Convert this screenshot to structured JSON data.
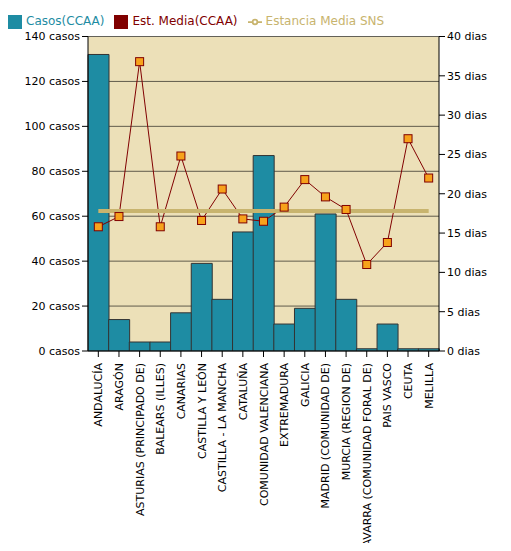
{
  "chart_data": {
    "type": "bar",
    "categories": [
      "ANDALUCÍA",
      "ARAGÓN",
      "ASTURIAS (PRINCIPADO DE)",
      "BALEARS (ILLES)",
      "CANARIAS",
      "CASTILLA Y LEÓN",
      "CASTILLA - LA MANCHA",
      "CATALUÑA",
      "COMUNIDAD VALENCIANA",
      "EXTREMADURA",
      "GALICIA",
      "MADRID (COMUNIDAD DE)",
      "MURCIA (REGION DE)",
      "NAVARRA (COMUNIDAD FORAL DE)",
      "PAIS VASCO",
      "CEUTA",
      "MELILLA"
    ],
    "series": [
      {
        "name": "Casos(CCAA)",
        "type": "bar",
        "color": "#1e8ca3",
        "values": [
          132,
          14,
          4,
          4,
          17,
          39,
          23,
          53,
          87,
          12,
          19,
          61,
          23,
          1,
          12,
          1,
          1
        ]
      },
      {
        "name": "Est. Media(CCAA)",
        "type": "line",
        "axis": "y2",
        "color": "#800000",
        "marker": "square",
        "values": [
          15.8,
          17.1,
          36.8,
          15.8,
          24.8,
          16.6,
          20.6,
          16.8,
          16.5,
          18.3,
          21.8,
          19.6,
          18.0,
          11.0,
          13.8,
          27.0,
          22.0
        ]
      },
      {
        "name": "Estancia Media SNS",
        "type": "line",
        "axis": "y2",
        "color": "#c8b46e",
        "marker": "none",
        "values": [
          17.8,
          17.8,
          17.8,
          17.8,
          17.8,
          17.8,
          17.8,
          17.8,
          17.8,
          17.8,
          17.8,
          17.8,
          17.8,
          17.8,
          17.8,
          17.8,
          17.8
        ]
      }
    ],
    "ylim": [
      0,
      140
    ],
    "yticks": [
      {
        "value": 0,
        "label": "0 casos"
      },
      {
        "value": 20,
        "label": "20 casos"
      },
      {
        "value": 40,
        "label": "40 casos"
      },
      {
        "value": 60,
        "label": "60 casos"
      },
      {
        "value": 80,
        "label": "80 casos"
      },
      {
        "value": 100,
        "label": "100 casos"
      },
      {
        "value": 120,
        "label": "120 casos"
      },
      {
        "value": 140,
        "label": "140 casos"
      }
    ],
    "y2lim": [
      0,
      40
    ],
    "y2ticks": [
      {
        "value": 0,
        "label": "0 dias"
      },
      {
        "value": 5,
        "label": "5 dias"
      },
      {
        "value": 10,
        "label": "10 dias"
      },
      {
        "value": 15,
        "label": "15 dias"
      },
      {
        "value": 20,
        "label": "20 dias"
      },
      {
        "value": 25,
        "label": "25 dias"
      },
      {
        "value": 30,
        "label": "30 dias"
      },
      {
        "value": 35,
        "label": "35 dias"
      },
      {
        "value": 40,
        "label": "40 dias"
      }
    ],
    "grid": true,
    "legend": "top"
  }
}
